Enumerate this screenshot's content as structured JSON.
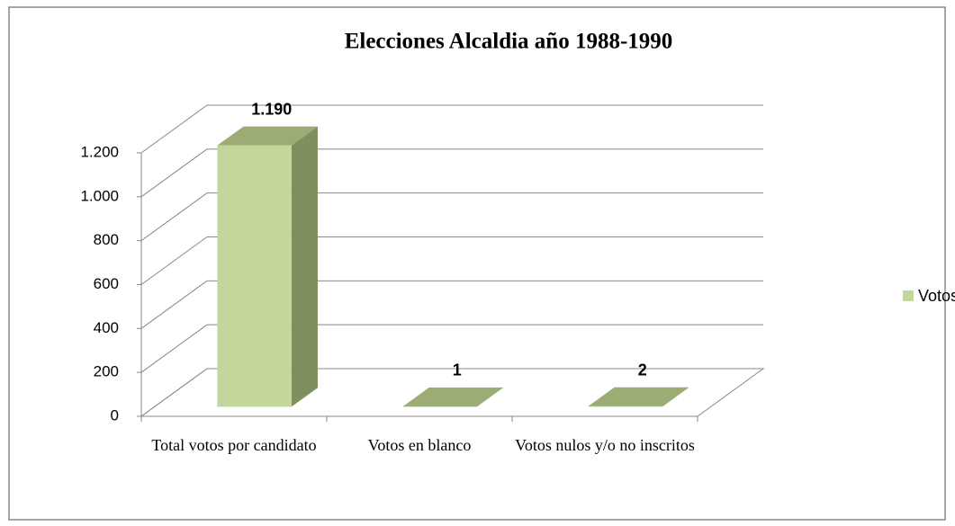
{
  "chart_data": {
    "type": "bar3d",
    "title": "Elecciones Alcaldia año 1988-1990",
    "categories": [
      "Total votos por candidato",
      "Votos en blanco",
      "Votos nulos y/o no inscritos"
    ],
    "series": [
      {
        "name": "Votos",
        "color": "#c3d69b",
        "values": [
          1190,
          1,
          2
        ],
        "value_labels": [
          "1.190",
          "1",
          "2"
        ]
      }
    ],
    "ylim": [
      0,
      1200
    ],
    "yticks": [
      0,
      200,
      400,
      600,
      800,
      {
        "value": 1000,
        "label": "1.000"
      },
      {
        "value": 1200,
        "label": "1.200"
      }
    ],
    "grid": true,
    "legend": "right"
  }
}
